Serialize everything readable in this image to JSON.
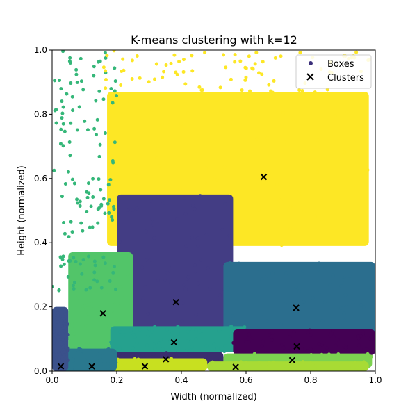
{
  "chart_data": {
    "type": "scatter",
    "title": "K-means clustering with k=12",
    "xlabel": "Width (normalized)",
    "ylabel": "Height (normalized)",
    "xlim": [
      0.0,
      1.0
    ],
    "ylim": [
      0.0,
      1.0
    ],
    "xticks": [
      "0.0",
      "0.2",
      "0.4",
      "0.6",
      "0.8",
      "1.0"
    ],
    "yticks": [
      "0.0",
      "0.2",
      "0.4",
      "0.6",
      "0.8",
      "1.0"
    ],
    "grid": false,
    "legend": {
      "placement": "top-right",
      "entries": [
        "Boxes",
        "Clusters"
      ]
    },
    "colors": {
      "boxes_legend": "#3b2f7a",
      "cluster_marker": "#000000",
      "palette": [
        "#440154",
        "#482878",
        "#3e4989",
        "#31688e",
        "#26828e",
        "#1f9e89",
        "#35b779",
        "#6ece58",
        "#b5de2b",
        "#fde725",
        "#56c667",
        "#2d708e"
      ]
    },
    "clusters": [
      {
        "x": 0.655,
        "y": 0.605,
        "color": "#fde725",
        "region": [
          0.17,
          0.39,
          0.98,
          0.87
        ]
      },
      {
        "x": 0.383,
        "y": 0.215,
        "color": "#433d84",
        "region": [
          0.2,
          0.12,
          0.56,
          0.55
        ]
      },
      {
        "x": 0.755,
        "y": 0.197,
        "color": "#2b6e8e",
        "region": [
          0.53,
          0.09,
          1.0,
          0.34
        ]
      },
      {
        "x": 0.157,
        "y": 0.18,
        "color": "#52c569",
        "region": [
          0.05,
          0.06,
          0.25,
          0.37
        ]
      },
      {
        "x": 0.377,
        "y": 0.09,
        "color": "#25a18e",
        "region": [
          0.18,
          0.06,
          0.6,
          0.14
        ]
      },
      {
        "x": 0.757,
        "y": 0.077,
        "color": "#440154",
        "region": [
          0.56,
          0.05,
          1.0,
          0.13
        ]
      },
      {
        "x": 0.352,
        "y": 0.037,
        "color": "#3a2d6f",
        "region": [
          0.09,
          0.015,
          0.53,
          0.06
        ]
      },
      {
        "x": 0.743,
        "y": 0.034,
        "color": "#7cd250",
        "region": [
          0.53,
          0.01,
          0.99,
          0.055
        ]
      },
      {
        "x": 0.568,
        "y": 0.013,
        "color": "#a8db34",
        "region": [
          0.48,
          0.0,
          0.98,
          0.03
        ]
      },
      {
        "x": 0.287,
        "y": 0.015,
        "color": "#c8e020",
        "region": [
          0.18,
          0.0,
          0.48,
          0.04
        ]
      },
      {
        "x": 0.123,
        "y": 0.015,
        "color": "#2a788e",
        "region": [
          0.04,
          0.0,
          0.2,
          0.07
        ]
      },
      {
        "x": 0.027,
        "y": 0.015,
        "color": "#3b518b",
        "region": [
          0.0,
          0.0,
          0.05,
          0.2
        ]
      }
    ]
  }
}
